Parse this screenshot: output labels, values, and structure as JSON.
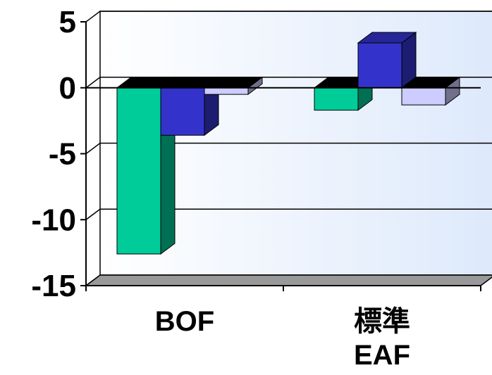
{
  "chart_data": {
    "type": "bar",
    "style": "3d-clustered-column",
    "categories": [
      {
        "lines": [
          "BOF"
        ]
      },
      {
        "lines": [
          "標準",
          "EAF"
        ]
      }
    ],
    "series": [
      {
        "values": [
          -12.6,
          -1.7
        ],
        "color": "#00CC99"
      },
      {
        "values": [
          -3.6,
          3.4
        ],
        "color": "#3333CC"
      },
      {
        "values": [
          -0.5,
          -1.3
        ],
        "color": "#CCCCFF"
      }
    ],
    "ylim": [
      -15,
      5
    ],
    "yticks": [
      "5",
      "0",
      "-5",
      "-10",
      "-15"
    ],
    "grid": true,
    "legend": "none",
    "title": "",
    "xlabel": "",
    "ylabel": ""
  }
}
